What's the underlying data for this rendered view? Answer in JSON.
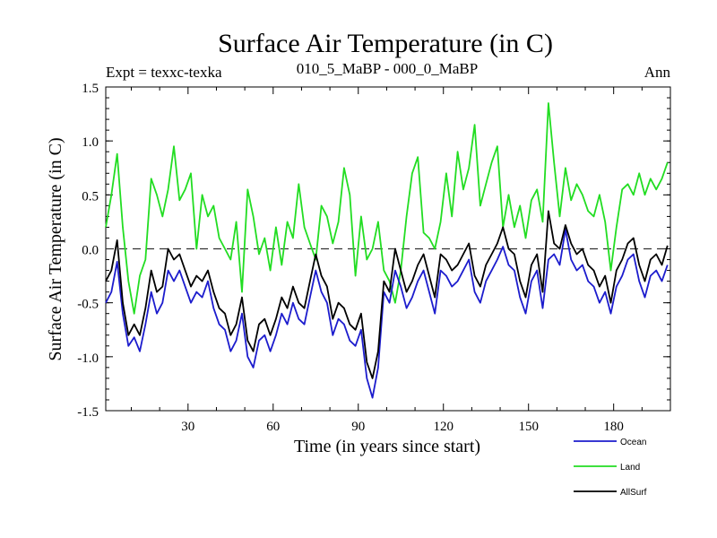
{
  "chart_data": {
    "type": "line",
    "title": "Surface Air Temperature (in C)",
    "subtitle_left": "Expt = texxc-texka",
    "subtitle_center": "010_5_MaBP - 000_0_MaBP",
    "subtitle_right": "Ann",
    "xlabel": "Time (in years since start)",
    "ylabel": "Surface Air Temperature (in C)",
    "xlim": [
      1,
      200
    ],
    "ylim": [
      -1.5,
      1.5
    ],
    "x_ticks": [
      30,
      60,
      90,
      120,
      150,
      180
    ],
    "y_ticks": [
      -1.5,
      -1.0,
      -0.5,
      0.0,
      0.5,
      1.0,
      1.5
    ],
    "y_tick_labels": [
      "-1.5",
      "-1.0",
      "-0.5",
      "0.0",
      "0.5",
      "1.0",
      "1.5"
    ],
    "reference_line": 0.0,
    "x": [
      1,
      3,
      5,
      7,
      9,
      11,
      13,
      15,
      17,
      19,
      21,
      23,
      25,
      27,
      29,
      31,
      33,
      35,
      37,
      39,
      41,
      43,
      45,
      47,
      49,
      51,
      53,
      55,
      57,
      59,
      61,
      63,
      65,
      67,
      69,
      71,
      73,
      75,
      77,
      79,
      81,
      83,
      85,
      87,
      89,
      91,
      93,
      95,
      97,
      99,
      101,
      103,
      105,
      107,
      109,
      111,
      113,
      115,
      117,
      119,
      121,
      123,
      125,
      127,
      129,
      131,
      133,
      135,
      137,
      139,
      141,
      143,
      145,
      147,
      149,
      151,
      153,
      155,
      157,
      159,
      161,
      163,
      165,
      167,
      169,
      171,
      173,
      175,
      177,
      179,
      181,
      183,
      185,
      187,
      189,
      191,
      193,
      195,
      197,
      199
    ],
    "series": [
      {
        "name": "Ocean",
        "color": "#1c1ccd",
        "values": [
          -0.5,
          -0.4,
          -0.12,
          -0.6,
          -0.9,
          -0.82,
          -0.95,
          -0.7,
          -0.4,
          -0.6,
          -0.5,
          -0.2,
          -0.3,
          -0.2,
          -0.35,
          -0.5,
          -0.4,
          -0.45,
          -0.3,
          -0.55,
          -0.7,
          -0.75,
          -0.95,
          -0.85,
          -0.6,
          -1.0,
          -1.1,
          -0.85,
          -0.8,
          -0.95,
          -0.8,
          -0.6,
          -0.7,
          -0.5,
          -0.65,
          -0.7,
          -0.45,
          -0.2,
          -0.4,
          -0.5,
          -0.8,
          -0.65,
          -0.7,
          -0.85,
          -0.9,
          -0.75,
          -1.2,
          -1.38,
          -1.1,
          -0.4,
          -0.5,
          -0.2,
          -0.35,
          -0.55,
          -0.45,
          -0.3,
          -0.2,
          -0.4,
          -0.6,
          -0.2,
          -0.25,
          -0.35,
          -0.3,
          -0.2,
          -0.1,
          -0.4,
          -0.5,
          -0.3,
          -0.2,
          -0.1,
          0.02,
          -0.15,
          -0.2,
          -0.45,
          -0.6,
          -0.3,
          -0.2,
          -0.55,
          -0.1,
          -0.05,
          -0.15,
          0.18,
          -0.1,
          -0.2,
          -0.15,
          -0.3,
          -0.35,
          -0.5,
          -0.4,
          -0.6,
          -0.35,
          -0.25,
          -0.1,
          -0.05,
          -0.3,
          -0.45,
          -0.25,
          -0.2,
          -0.3,
          -0.15
        ]
      },
      {
        "name": "Land",
        "color": "#22dd22",
        "values": [
          0.2,
          0.5,
          0.88,
          0.2,
          -0.3,
          -0.6,
          -0.25,
          -0.1,
          0.65,
          0.5,
          0.3,
          0.55,
          0.95,
          0.45,
          0.55,
          0.7,
          0.0,
          0.5,
          0.3,
          0.4,
          0.1,
          0.0,
          -0.1,
          0.25,
          -0.4,
          0.55,
          0.3,
          -0.05,
          0.1,
          -0.2,
          0.2,
          -0.15,
          0.25,
          0.1,
          0.6,
          0.2,
          0.05,
          -0.1,
          0.4,
          0.3,
          0.05,
          0.25,
          0.75,
          0.5,
          -0.25,
          0.3,
          -0.1,
          0.0,
          0.25,
          -0.2,
          -0.3,
          -0.5,
          -0.2,
          0.3,
          0.7,
          0.85,
          0.15,
          0.1,
          0.0,
          0.25,
          0.7,
          0.3,
          0.9,
          0.55,
          0.75,
          1.15,
          0.4,
          0.6,
          0.8,
          0.95,
          0.2,
          0.5,
          0.2,
          0.4,
          0.1,
          0.45,
          0.55,
          0.25,
          1.35,
          0.8,
          0.3,
          0.75,
          0.45,
          0.6,
          0.5,
          0.35,
          0.3,
          0.5,
          0.25,
          -0.2,
          0.2,
          0.55,
          0.6,
          0.5,
          0.7,
          0.5,
          0.65,
          0.55,
          0.65,
          0.8
        ]
      },
      {
        "name": "AllSurf",
        "color": "#000000",
        "values": [
          -0.3,
          -0.2,
          0.08,
          -0.5,
          -0.8,
          -0.7,
          -0.8,
          -0.55,
          -0.2,
          -0.4,
          -0.35,
          0.0,
          -0.1,
          -0.05,
          -0.2,
          -0.35,
          -0.25,
          -0.3,
          -0.2,
          -0.4,
          -0.55,
          -0.6,
          -0.8,
          -0.7,
          -0.45,
          -0.85,
          -0.95,
          -0.7,
          -0.65,
          -0.8,
          -0.65,
          -0.45,
          -0.55,
          -0.35,
          -0.5,
          -0.55,
          -0.3,
          -0.05,
          -0.25,
          -0.35,
          -0.65,
          -0.5,
          -0.55,
          -0.7,
          -0.75,
          -0.6,
          -1.05,
          -1.2,
          -0.95,
          -0.3,
          -0.4,
          0.0,
          -0.2,
          -0.4,
          -0.3,
          -0.15,
          -0.05,
          -0.25,
          -0.45,
          -0.05,
          -0.1,
          -0.2,
          -0.15,
          -0.05,
          0.05,
          -0.25,
          -0.35,
          -0.15,
          -0.05,
          0.05,
          0.2,
          0.0,
          -0.05,
          -0.3,
          -0.45,
          -0.15,
          -0.05,
          -0.4,
          0.35,
          0.05,
          0.0,
          0.22,
          0.05,
          -0.05,
          0.0,
          -0.15,
          -0.2,
          -0.35,
          -0.25,
          -0.5,
          -0.2,
          -0.1,
          0.05,
          0.1,
          -0.15,
          -0.3,
          -0.1,
          -0.05,
          -0.15,
          0.03
        ]
      }
    ]
  }
}
